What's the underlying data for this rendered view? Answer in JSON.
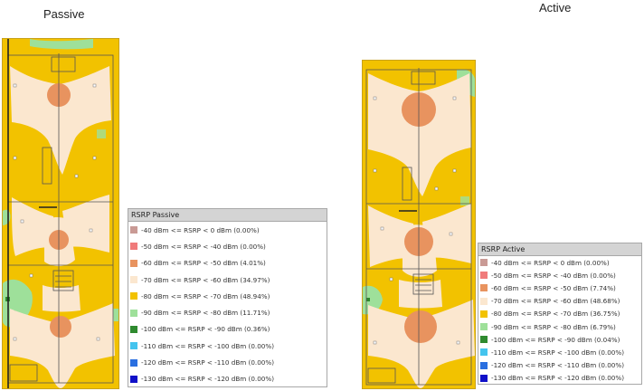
{
  "panels": [
    {
      "id": "passive",
      "title": "Passive",
      "legend": {
        "header": "RSRP Passive",
        "entries": [
          {
            "label": "-40 dBm <= RSRP < 0 dBm  (0.00%)",
            "color": "#c99a95"
          },
          {
            "label": "-50 dBm <= RSRP < -40 dBm  (0.00%)",
            "color": "#f07b7b"
          },
          {
            "label": "-60 dBm <= RSRP < -50 dBm  (4.01%)",
            "color": "#e8935f"
          },
          {
            "label": "-70 dBm <= RSRP < -60 dBm  (34.97%)",
            "color": "#fbe7cf"
          },
          {
            "label": "-80 dBm <= RSRP < -70 dBm  (48.94%)",
            "color": "#f2c200"
          },
          {
            "label": "-90 dBm <= RSRP < -80 dBm  (11.71%)",
            "color": "#9ee09a"
          },
          {
            "label": "-100 dBm <= RSRP < -90 dBm  (0.36%)",
            "color": "#2f8a2f"
          },
          {
            "label": "-110 dBm <= RSRP < -100 dBm  (0.00%)",
            "color": "#44c4ee"
          },
          {
            "label": "-120 dBm <= RSRP < -110 dBm  (0.00%)",
            "color": "#2a6fe0"
          },
          {
            "label": "-130 dBm <= RSRP < -120 dBm  (0.00%)",
            "color": "#1010c8"
          }
        ]
      }
    },
    {
      "id": "active",
      "title": "Active",
      "legend": {
        "header": "RSRP Active",
        "entries": [
          {
            "label": "-40 dBm <= RSRP < 0 dBm  (0.00%)",
            "color": "#c99a95"
          },
          {
            "label": "-50 dBm <= RSRP < -40 dBm  (0.00%)",
            "color": "#f07b7b"
          },
          {
            "label": "-60 dBm <= RSRP < -50 dBm  (7.74%)",
            "color": "#e8935f"
          },
          {
            "label": "-70 dBm <= RSRP < -60 dBm  (48.68%)",
            "color": "#fbe7cf"
          },
          {
            "label": "-80 dBm <= RSRP < -70 dBm  (36.75%)",
            "color": "#f2c200"
          },
          {
            "label": "-90 dBm <= RSRP < -80 dBm  (6.79%)",
            "color": "#9ee09a"
          },
          {
            "label": "-100 dBm <= RSRP < -90 dBm  (0.04%)",
            "color": "#2f8a2f"
          },
          {
            "label": "-110 dBm <= RSRP < -100 dBm  (0.00%)",
            "color": "#44c4ee"
          },
          {
            "label": "-120 dBm <= RSRP < -110 dBm  (0.00%)",
            "color": "#2a6fe0"
          },
          {
            "label": "-130 dBm <= RSRP < -120 dBm  (0.00%)",
            "color": "#1010c8"
          }
        ]
      }
    }
  ]
}
